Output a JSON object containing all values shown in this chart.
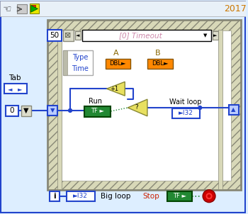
{
  "bg_color": "#ddeeff",
  "border_color": "#4477cc",
  "title_year": "2017",
  "tab_label": "Tab",
  "zero_label": "0",
  "fifty_label": "50",
  "timeout_label": "[0] Timeout",
  "type_label": "Type",
  "time_label": "Time",
  "a_label": "A",
  "b_label": "B",
  "run_label": "Run",
  "wait_loop_label": "Wait loop",
  "big_loop_label": "Big loop",
  "stop_label": "Stop",
  "plus1_label": "+1",
  "i_label": "i",
  "dbl_color": "#ff8800",
  "dbl_text": "DBL►",
  "green_box_color": "#228833",
  "blue_wire": "#2244cc",
  "green_wire": "#228833",
  "loop_border_color": "#888877",
  "loop_hatch_color": "#d8d8b8",
  "loop_inner_color": "#ffffff",
  "toolbar_bg": "#e8e8e8",
  "outer_bg": "#ddeeff",
  "year_color": "#cc7700",
  "tf_text": "TF ►",
  "i32_text": "►I32",
  "node_blue": "#2244cc"
}
